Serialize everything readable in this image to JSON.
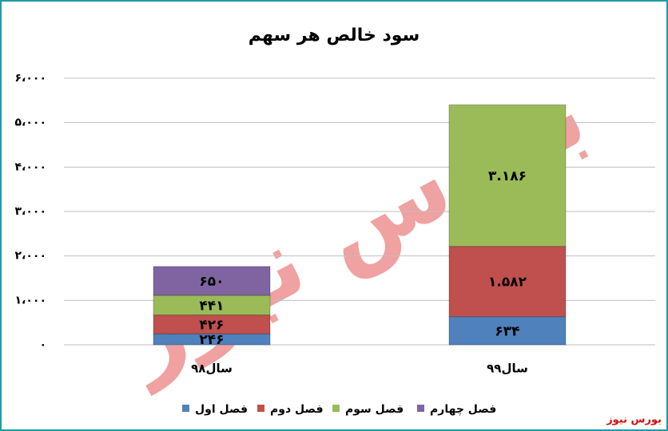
{
  "chart_data": {
    "type": "stacked_bar",
    "title": "سود خالص هر سهم",
    "categories": [
      "سال۹۸",
      "سال۹۹"
    ],
    "series": [
      {
        "name": "فصل اول",
        "color": "#4f81bd",
        "values": [
          246,
          634
        ],
        "value_labels": [
          "۲۴۶",
          "۶۳۴"
        ]
      },
      {
        "name": "فصل دوم",
        "color": "#c0504d",
        "values": [
          426,
          1582
        ],
        "value_labels": [
          "۴۲۶",
          "۱.۵۸۲"
        ]
      },
      {
        "name": "فصل سوم",
        "color": "#9bbb59",
        "values": [
          441,
          3186
        ],
        "value_labels": [
          "۴۴۱",
          "۳.۱۸۶"
        ]
      },
      {
        "name": "فصل چهارم",
        "color": "#8064a2",
        "values": [
          650,
          null
        ],
        "value_labels": [
          "۶۵۰",
          null
        ]
      }
    ],
    "ylim": [
      0,
      6000
    ],
    "yticks": [
      {
        "value": 0,
        "label": "۰"
      },
      {
        "value": 1000,
        "label": "۱،۰۰۰"
      },
      {
        "value": 2000,
        "label": "۲،۰۰۰"
      },
      {
        "value": 3000,
        "label": "۳،۰۰۰"
      },
      {
        "value": 4000,
        "label": "۴،۰۰۰"
      },
      {
        "value": 5000,
        "label": "۵،۰۰۰"
      },
      {
        "value": 6000,
        "label": "۶،۰۰۰"
      }
    ],
    "grid": true,
    "legend": "bottom",
    "watermark": "بورس نیوز"
  }
}
